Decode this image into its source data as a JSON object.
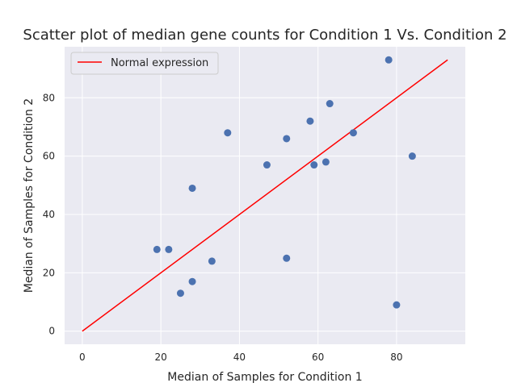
{
  "chart_data": {
    "type": "scatter",
    "title": "Scatter plot of median gene counts for Condition 1 Vs. Condition 2",
    "xlabel": "Median of Samples for Condition 1",
    "ylabel": "Median of Samples for Condition 2",
    "xlim": [
      -4.5,
      97.5
    ],
    "ylim": [
      -4.5,
      97.5
    ],
    "xticks": [
      0,
      20,
      40,
      60,
      80
    ],
    "yticks": [
      0,
      20,
      40,
      60,
      80
    ],
    "grid": true,
    "legend_position": "top-left",
    "points": [
      {
        "x": 19,
        "y": 28
      },
      {
        "x": 22,
        "y": 28
      },
      {
        "x": 25,
        "y": 13
      },
      {
        "x": 28,
        "y": 17
      },
      {
        "x": 28,
        "y": 49
      },
      {
        "x": 33,
        "y": 24
      },
      {
        "x": 37,
        "y": 68
      },
      {
        "x": 47,
        "y": 57
      },
      {
        "x": 52,
        "y": 25
      },
      {
        "x": 52,
        "y": 66
      },
      {
        "x": 58,
        "y": 72
      },
      {
        "x": 59,
        "y": 57
      },
      {
        "x": 62,
        "y": 58
      },
      {
        "x": 63,
        "y": 78
      },
      {
        "x": 69,
        "y": 68
      },
      {
        "x": 78,
        "y": 93
      },
      {
        "x": 80,
        "y": 9
      },
      {
        "x": 84,
        "y": 60
      }
    ],
    "series": [
      {
        "name": "Normal expression",
        "type": "line",
        "color": "#ff0000",
        "x": [
          0,
          93
        ],
        "y": [
          0,
          93
        ]
      }
    ],
    "point_color": "#4c72b0",
    "background_color": "#eaeaf2",
    "grid_color": "#ffffff"
  }
}
